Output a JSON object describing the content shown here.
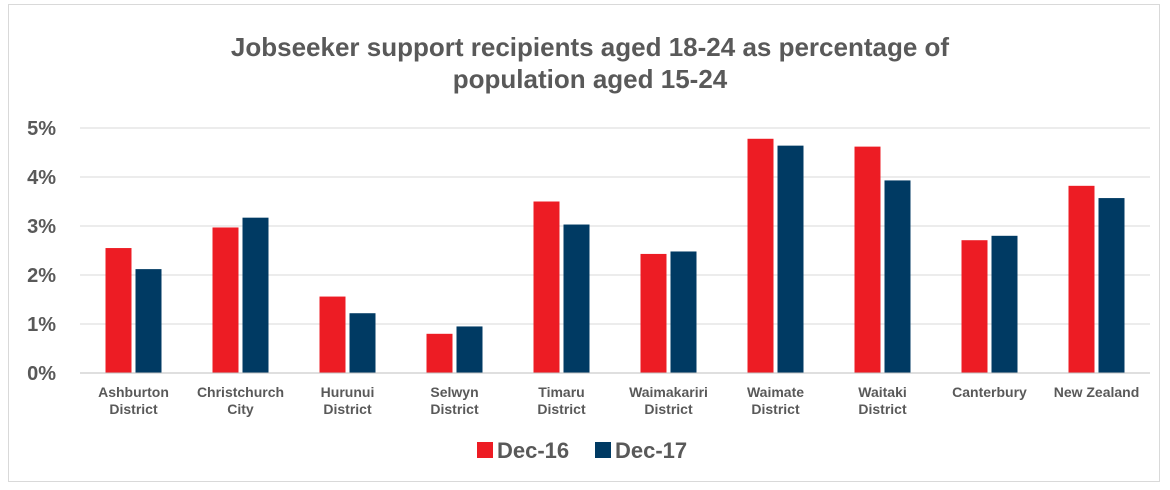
{
  "chart_data": {
    "type": "bar",
    "title_lines": [
      "Jobseeker support recipients aged 18-24 as percentage of",
      "population aged 15-24"
    ],
    "categories": [
      [
        "Ashburton",
        "District"
      ],
      [
        "Christchurch",
        "City"
      ],
      [
        "Hurunui",
        "District"
      ],
      [
        "Selwyn",
        "District"
      ],
      [
        "Timaru",
        "District"
      ],
      [
        "Waimakariri",
        "District"
      ],
      [
        "Waimate",
        "District"
      ],
      [
        "Waitaki",
        "District"
      ],
      [
        "Canterbury"
      ],
      [
        "New Zealand"
      ]
    ],
    "series": [
      {
        "name": "Dec-16",
        "color": "#ed1c24",
        "values": [
          2.55,
          2.97,
          1.56,
          0.8,
          3.5,
          2.43,
          4.78,
          4.62,
          2.71,
          3.82
        ]
      },
      {
        "name": "Dec-17",
        "color": "#003a63",
        "values": [
          2.12,
          3.17,
          1.22,
          0.95,
          3.03,
          2.48,
          4.64,
          3.93,
          2.8,
          3.57
        ]
      }
    ],
    "ylim": [
      0,
      5
    ],
    "yticks": [
      0,
      1,
      2,
      3,
      4,
      5
    ],
    "ytick_labels": [
      "0%",
      "1%",
      "2%",
      "3%",
      "4%",
      "5%"
    ],
    "grid": true,
    "legend_position": "bottom"
  }
}
